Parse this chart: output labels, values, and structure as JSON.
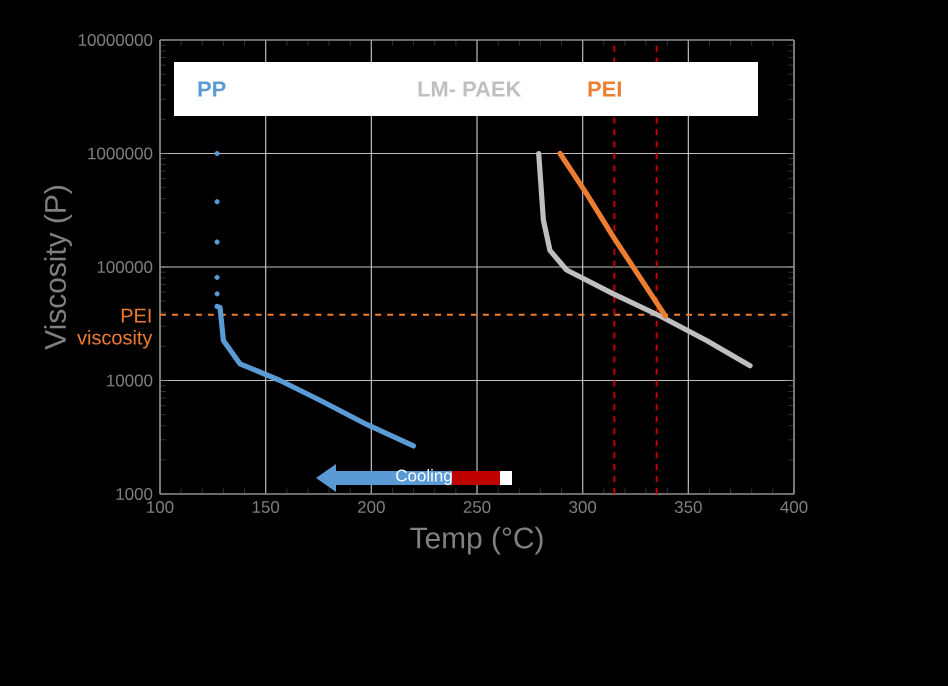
{
  "chart_data": {
    "type": "line",
    "xlabel": "Temp (°C)",
    "ylabel": "Viscosity (P)",
    "xlim": [
      100,
      400
    ],
    "ylim": [
      1000,
      10000000
    ],
    "xticks": [
      100,
      150,
      200,
      250,
      300,
      350,
      400
    ],
    "yticks": [
      1000,
      10000,
      100000,
      1000000,
      10000000
    ],
    "log": "y",
    "grid": true,
    "legend": "top",
    "line_style": "solid",
    "annotations": [
      "Cooling"
    ],
    "ref_lines": [
      {
        "axis": "y",
        "value": 38000,
        "label": "PEI viscosity",
        "color": "#ed7d31",
        "line_style": "dashed"
      },
      {
        "axis": "x",
        "value": 315,
        "color": "#c00000",
        "line_style": "dashed"
      },
      {
        "axis": "x",
        "value": 335,
        "color": "#c00000",
        "line_style": "dashed"
      }
    ],
    "series": [
      {
        "name": "PP",
        "color": "#5b9bd5",
        "x": [
          127,
          128.4,
          130,
          137.9,
          156.8,
          175.7,
          197.8,
          219.9
        ],
        "values": [
          45000,
          44000,
          22500,
          14000,
          10000,
          6700,
          4100,
          2650
        ]
      },
      {
        "type": "scatter",
        "color": "#5b9bd5",
        "x": [
          127,
          127,
          127,
          127,
          127
        ],
        "values": [
          1000000,
          376000,
          166000,
          81000,
          58000
        ]
      },
      {
        "name": "LM- PAEK",
        "color": "#bfbfbf",
        "x": [
          279.2,
          281.4,
          284.5,
          292.4,
          314.5,
          336.6,
          358.6,
          379.2
        ],
        "values": [
          1000000,
          260000,
          140000,
          94000,
          58000,
          37000,
          22500,
          13500
        ]
      },
      {
        "name": "PEI",
        "color": "#ed7d31",
        "x": [
          289.3,
          301.8,
          314.5,
          327.1,
          339.1
        ],
        "values": [
          1000000,
          443000,
          184000,
          81000,
          37000
        ]
      }
    ]
  }
}
